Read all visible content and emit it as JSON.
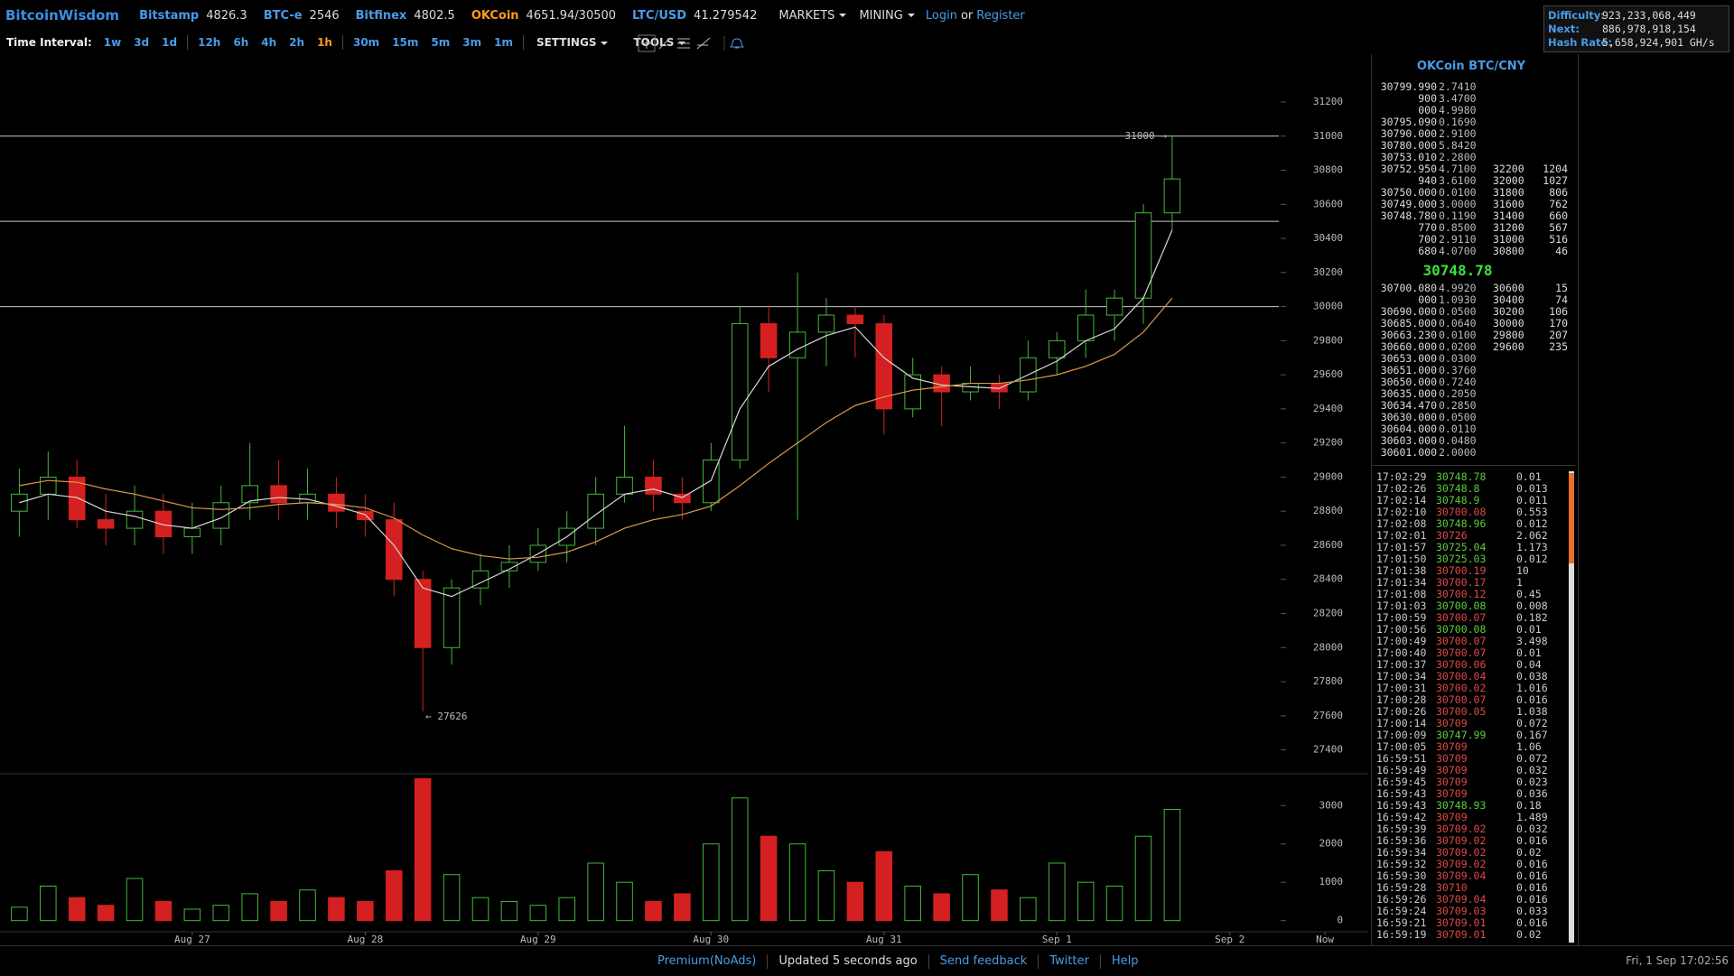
{
  "header": {
    "brand": "BitcoinWisdom",
    "tickers": [
      {
        "name": "Bitstamp",
        "price": "4826.3",
        "color": "#4a9be8"
      },
      {
        "name": "BTC-e",
        "price": "2546",
        "color": "#4a9be8"
      },
      {
        "name": "Bitfinex",
        "price": "4802.5",
        "color": "#4a9be8"
      },
      {
        "name": "OKCoin",
        "price": "4651.94/30500",
        "color": "#ff9a1a"
      },
      {
        "name": "LTC/USD",
        "price": "41.279542",
        "color": "#4a9be8"
      }
    ],
    "menus": [
      "MARKETS",
      "MINING"
    ],
    "account": {
      "login": "Login",
      "or": "or",
      "register": "Register"
    }
  },
  "network": [
    {
      "label": "Difficulty:",
      "value": "923,233,068,449"
    },
    {
      "label": "Next:",
      "value": "886,978,918,154"
    },
    {
      "label": "Hash Rate:",
      "value": "5,658,924,901 GH/s"
    }
  ],
  "toolbar": {
    "label": "Time Interval:",
    "intervals": [
      [
        "1w",
        "3d",
        "1d"
      ],
      [
        "12h",
        "6h",
        "4h",
        "2h",
        "1h"
      ],
      [
        "30m",
        "15m",
        "5m",
        "3m",
        "1m"
      ]
    ],
    "active": {
      "group": 1,
      "index": 4
    },
    "menus": [
      "SETTINGS",
      "TOOLS"
    ]
  },
  "chart_data": [
    {
      "type": "candlestick",
      "open": [
        28800,
        28900,
        29000,
        28750,
        28700,
        28800,
        28650,
        28700,
        28850,
        28950,
        28850,
        28900,
        28800,
        28750,
        28400,
        28000,
        28350,
        28450,
        28500,
        28600,
        28700,
        28900,
        29000,
        28900,
        28850,
        29100,
        29900,
        29700,
        29850,
        29950,
        29900,
        29400,
        29600,
        29500,
        29550,
        29500,
        29700,
        29800,
        29950,
        30050,
        30550
      ],
      "high": [
        29050,
        29150,
        29100,
        28900,
        28950,
        28900,
        28850,
        28950,
        29200,
        29100,
        29050,
        29000,
        28900,
        28850,
        28450,
        28400,
        28550,
        28600,
        28700,
        28800,
        29000,
        29300,
        29100,
        29000,
        29200,
        30000,
        30000,
        30200,
        30050,
        30000,
        29950,
        29700,
        29650,
        29650,
        29600,
        29800,
        29850,
        30100,
        30100,
        30600,
        31000
      ],
      "low": [
        28650,
        28750,
        28700,
        28600,
        28600,
        28550,
        28550,
        28600,
        28750,
        28750,
        28750,
        28700,
        28650,
        28300,
        27626,
        27900,
        28250,
        28350,
        28450,
        28500,
        28600,
        28850,
        28800,
        28750,
        28800,
        29050,
        29500,
        28750,
        29650,
        29700,
        29250,
        29350,
        29300,
        29450,
        29400,
        29450,
        29600,
        29700,
        29800,
        29900,
        30450
      ],
      "close": [
        28900,
        29000,
        28750,
        28700,
        28800,
        28650,
        28700,
        28850,
        28950,
        28850,
        28900,
        28800,
        28750,
        28400,
        28000,
        28350,
        28450,
        28500,
        28600,
        28700,
        28900,
        29000,
        28900,
        28850,
        29100,
        29900,
        29700,
        29850,
        29950,
        29900,
        29400,
        29600,
        29500,
        29550,
        29500,
        29700,
        29800,
        29950,
        30050,
        30550,
        30748.78
      ],
      "series": [
        {
          "color": "#d8d8d8",
          "values": [
            28850,
            28900,
            28880,
            28800,
            28770,
            28720,
            28700,
            28760,
            28860,
            28880,
            28870,
            28830,
            28780,
            28600,
            28350,
            28300,
            28380,
            28460,
            28550,
            28650,
            28780,
            28900,
            28930,
            28880,
            28980,
            29400,
            29650,
            29750,
            29830,
            29880,
            29700,
            29580,
            29540,
            29530,
            29520,
            29600,
            29680,
            29800,
            29870,
            30050,
            30450
          ]
        },
        {
          "color": "#d9994a",
          "values": [
            28950,
            28980,
            28970,
            28930,
            28900,
            28860,
            28820,
            28810,
            28820,
            28840,
            28850,
            28840,
            28820,
            28760,
            28660,
            28580,
            28540,
            28520,
            28530,
            28560,
            28620,
            28700,
            28750,
            28780,
            28830,
            28950,
            29080,
            29200,
            29320,
            29420,
            29470,
            29510,
            29530,
            29550,
            29550,
            29570,
            29600,
            29650,
            29720,
            29850,
            30050
          ]
        }
      ],
      "colors": {
        "up": "#45b83a",
        "down": "#d42020"
      },
      "hlines": [
        31000,
        30500,
        30000
      ],
      "annotations": [
        {
          "label": "31000 →",
          "value": 31000,
          "at": "high"
        },
        {
          "label": "← 27626",
          "value": 27626,
          "at": "low"
        }
      ],
      "xlim": [
        -0.67,
        43.7
      ],
      "ylim": [
        27260,
        31470
      ],
      "yticks": [
        27400,
        27600,
        27800,
        28000,
        28200,
        28400,
        28600,
        28800,
        29000,
        29200,
        29400,
        29600,
        29800,
        30000,
        30200,
        30400,
        30600,
        30800,
        31000,
        31200
      ],
      "grid": false
    },
    {
      "type": "bar",
      "values": [
        350,
        900,
        600,
        400,
        1100,
        500,
        300,
        400,
        700,
        500,
        800,
        600,
        500,
        1300,
        3700,
        1200,
        600,
        500,
        400,
        600,
        1500,
        1000,
        500,
        700,
        2000,
        3200,
        2200,
        2000,
        1300,
        1000,
        1800,
        900,
        700,
        1200,
        800,
        600,
        1500,
        1000,
        900,
        2200,
        2900
      ],
      "xlim": [
        -0.67,
        43.7
      ],
      "ylim": [
        -290,
        3830
      ],
      "yticks": [
        0,
        1000,
        2000,
        3000
      ],
      "xticks": [
        {
          "value": 6,
          "label": "Aug 27"
        },
        {
          "value": 12,
          "label": "Aug 28"
        },
        {
          "value": 18,
          "label": "Aug 29"
        },
        {
          "value": 24,
          "label": "Aug 30"
        },
        {
          "value": 30,
          "label": "Aug 31"
        },
        {
          "value": 36,
          "label": "Sep 1"
        },
        {
          "value": 42,
          "label": "Sep 2"
        },
        {
          "value": 45.3,
          "label": "Now"
        }
      ],
      "grid": false
    }
  ],
  "orderbook": {
    "title": "OKCoin BTC/CNY",
    "asks": [
      [
        "30799.990",
        "2.7410"
      ],
      [
        "900",
        "3.4700"
      ],
      [
        "000",
        "4.9980"
      ],
      [
        "30795.090",
        "0.1690"
      ],
      [
        "30790.000",
        "2.9100"
      ],
      [
        "30780.000",
        "5.8420"
      ],
      [
        "30753.010",
        "2.2800"
      ],
      [
        "30752.950",
        "4.7100",
        "32200",
        "1204"
      ],
      [
        "940",
        "3.6100",
        "32000",
        "1027"
      ],
      [
        "30750.000",
        "0.0100",
        "31800",
        "806"
      ],
      [
        "30749.000",
        "3.0000",
        "31600",
        "762"
      ],
      [
        "30748.780",
        "0.1190",
        "31400",
        "660"
      ],
      [
        "770",
        "0.8500",
        "31200",
        "567"
      ],
      [
        "700",
        "2.9110",
        "31000",
        "516"
      ],
      [
        "680",
        "4.0700",
        "30800",
        "46"
      ]
    ],
    "last": "30748.78",
    "bids": [
      [
        "30700.080",
        "4.9920",
        "30600",
        "15"
      ],
      [
        "000",
        "1.0930",
        "30400",
        "74"
      ],
      [
        "30690.000",
        "0.0500",
        "30200",
        "106"
      ],
      [
        "30685.000",
        "0.0640",
        "30000",
        "170"
      ],
      [
        "30663.230",
        "0.0100",
        "29800",
        "207"
      ],
      [
        "30660.000",
        "0.0200",
        "29600",
        "235"
      ],
      [
        "30653.000",
        "0.0300"
      ],
      [
        "30651.000",
        "0.3760"
      ],
      [
        "30650.000",
        "0.7240"
      ],
      [
        "30635.000",
        "0.2050"
      ],
      [
        "30634.470",
        "0.2850"
      ],
      [
        "30630.000",
        "0.0500"
      ],
      [
        "30604.000",
        "0.0110"
      ],
      [
        "30603.000",
        "0.0480"
      ],
      [
        "30601.000",
        "2.0000"
      ]
    ]
  },
  "trades": [
    [
      "17:02:29",
      "30748.78",
      "0.01",
      "#5ccc3c"
    ],
    [
      "17:02:26",
      "30748.8",
      "0.013",
      "#5ccc3c"
    ],
    [
      "17:02:14",
      "30748.9",
      "0.011",
      "#5ccc3c"
    ],
    [
      "17:02:10",
      "30700.08",
      "0.553",
      "#e04848"
    ],
    [
      "17:02:08",
      "30748.96",
      "0.012",
      "#5ccc3c"
    ],
    [
      "17:02:01",
      "30726",
      "2.062",
      "#e04848"
    ],
    [
      "17:01:57",
      "30725.04",
      "1.173",
      "#5ccc3c"
    ],
    [
      "17:01:50",
      "30725.03",
      "0.012",
      "#5ccc3c"
    ],
    [
      "17:01:38",
      "30700.19",
      "10",
      "#e04848"
    ],
    [
      "17:01:34",
      "30700.17",
      "1",
      "#e04848"
    ],
    [
      "17:01:08",
      "30700.12",
      "0.45",
      "#e04848"
    ],
    [
      "17:01:03",
      "30700.08",
      "0.008",
      "#5ccc3c"
    ],
    [
      "17:00:59",
      "30700.07",
      "0.182",
      "#e04848"
    ],
    [
      "17:00:56",
      "30700.08",
      "0.01",
      "#5ccc3c"
    ],
    [
      "17:00:49",
      "30700.07",
      "3.498",
      "#e04848"
    ],
    [
      "17:00:40",
      "30700.07",
      "0.01",
      "#e04848"
    ],
    [
      "17:00:37",
      "30700.06",
      "0.04",
      "#e04848"
    ],
    [
      "17:00:34",
      "30700.04",
      "0.038",
      "#e04848"
    ],
    [
      "17:00:31",
      "30700.02",
      "1.016",
      "#e04848"
    ],
    [
      "17:00:28",
      "30700.07",
      "0.016",
      "#e04848"
    ],
    [
      "17:00:26",
      "30700.05",
      "1.038",
      "#e04848"
    ],
    [
      "17:00:14",
      "30709",
      "0.072",
      "#e04848"
    ],
    [
      "17:00:09",
      "30747.99",
      "0.167",
      "#5ccc3c"
    ],
    [
      "17:00:05",
      "30709",
      "1.06",
      "#e04848"
    ],
    [
      "16:59:51",
      "30709",
      "0.072",
      "#e04848"
    ],
    [
      "16:59:49",
      "30709",
      "0.032",
      "#e04848"
    ],
    [
      "16:59:45",
      "30709",
      "0.023",
      "#e04848"
    ],
    [
      "16:59:43",
      "30709",
      "0.036",
      "#e04848"
    ],
    [
      "16:59:43",
      "30748.93",
      "0.18",
      "#5ccc3c"
    ],
    [
      "16:59:42",
      "30709",
      "1.489",
      "#e04848"
    ],
    [
      "16:59:39",
      "30709.02",
      "0.032",
      "#e04848"
    ],
    [
      "16:59:36",
      "30709.02",
      "0.016",
      "#e04848"
    ],
    [
      "16:59:34",
      "30709.02",
      "0.02",
      "#e04848"
    ],
    [
      "16:59:32",
      "30709.02",
      "0.016",
      "#e04848"
    ],
    [
      "16:59:30",
      "30709.04",
      "0.016",
      "#e04848"
    ],
    [
      "16:59:28",
      "30710",
      "0.016",
      "#e04848"
    ],
    [
      "16:59:26",
      "30709.04",
      "0.016",
      "#e04848"
    ],
    [
      "16:59:24",
      "30709.03",
      "0.033",
      "#e04848"
    ],
    [
      "16:59:21",
      "30709.01",
      "0.016",
      "#e04848"
    ],
    [
      "16:59:19",
      "30709.01",
      "0.02",
      "#e04848"
    ]
  ],
  "footer": {
    "links": [
      {
        "text": "Premium(NoAds)",
        "link": true
      },
      {
        "text": "Updated 5 seconds ago",
        "link": false
      },
      {
        "text": "Send feedback",
        "link": true
      },
      {
        "text": "Twitter",
        "link": true
      },
      {
        "text": "Help",
        "link": true
      }
    ],
    "time": "Fri, 1 Sep 17:02:56"
  }
}
